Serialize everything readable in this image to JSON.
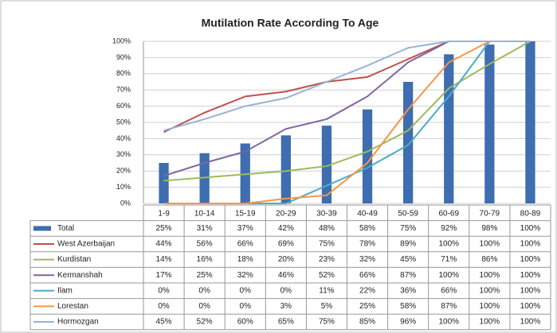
{
  "chart_data": {
    "type": "bar",
    "title": "Mutilation Rate According To Age",
    "categories": [
      "1-9",
      "10-14",
      "15-19",
      "20-29",
      "30-39",
      "40-49",
      "50-59",
      "60-69",
      "70-79",
      "80-89"
    ],
    "ylim": [
      0,
      100
    ],
    "yticks": [
      {
        "value": 0,
        "label": "0%"
      },
      {
        "value": 10,
        "label": "10%"
      },
      {
        "value": 20,
        "label": "20%"
      },
      {
        "value": 30,
        "label": "30%"
      },
      {
        "value": 40,
        "label": "40%"
      },
      {
        "value": 50,
        "label": "50%"
      },
      {
        "value": 60,
        "label": "60%"
      },
      {
        "value": 70,
        "label": "70%"
      },
      {
        "value": 80,
        "label": "80%"
      },
      {
        "value": 90,
        "label": "90%"
      },
      {
        "value": 100,
        "label": "100%"
      }
    ],
    "grid": true,
    "series": [
      {
        "name": "Total",
        "type": "bar",
        "color": "#3e6db0",
        "values": [
          25,
          31,
          37,
          42,
          48,
          58,
          75,
          92,
          98,
          100
        ],
        "value_labels": [
          "25%",
          "31%",
          "37%",
          "42%",
          "48%",
          "58%",
          "75%",
          "92%",
          "98%",
          "100%"
        ]
      },
      {
        "name": "West Azerbaijan",
        "type": "line",
        "color": "#c0504d",
        "values": [
          44,
          56,
          66,
          69,
          75,
          78,
          89,
          100,
          100,
          100
        ],
        "value_labels": [
          "44%",
          "56%",
          "66%",
          "69%",
          "75%",
          "78%",
          "89%",
          "100%",
          "100%",
          "100%"
        ]
      },
      {
        "name": "Kurdistan",
        "type": "line",
        "color": "#9bbb59",
        "values": [
          14,
          16,
          18,
          20,
          23,
          32,
          45,
          71,
          86,
          100
        ],
        "value_labels": [
          "14%",
          "16%",
          "18%",
          "20%",
          "23%",
          "32%",
          "45%",
          "71%",
          "86%",
          "100%"
        ]
      },
      {
        "name": "Kermanshah",
        "type": "line",
        "color": "#8064a2",
        "values": [
          17,
          25,
          32,
          46,
          52,
          66,
          87,
          100,
          100,
          100
        ],
        "value_labels": [
          "17%",
          "25%",
          "32%",
          "46%",
          "52%",
          "66%",
          "87%",
          "100%",
          "100%",
          "100%"
        ]
      },
      {
        "name": "Ilam",
        "type": "line",
        "color": "#4bacc6",
        "values": [
          0,
          0,
          0,
          0,
          11,
          22,
          36,
          66,
          100,
          100
        ],
        "value_labels": [
          "0%",
          "0%",
          "0%",
          "0%",
          "11%",
          "22%",
          "36%",
          "66%",
          "100%",
          "100%"
        ]
      },
      {
        "name": "Lorestan",
        "type": "line",
        "color": "#f79646",
        "values": [
          0,
          0,
          0,
          3,
          5,
          25,
          58,
          87,
          100,
          100
        ],
        "value_labels": [
          "0%",
          "0%",
          "0%",
          "3%",
          "5%",
          "25%",
          "58%",
          "87%",
          "100%",
          "100%"
        ]
      },
      {
        "name": "Hormozgan",
        "type": "line",
        "color": "#95b3d7",
        "values": [
          45,
          52,
          60,
          65,
          75,
          85,
          96,
          100,
          100,
          100
        ],
        "value_labels": [
          "45%",
          "52%",
          "60%",
          "65%",
          "75%",
          "85%",
          "96%",
          "100%",
          "100%",
          "100%"
        ]
      }
    ]
  }
}
